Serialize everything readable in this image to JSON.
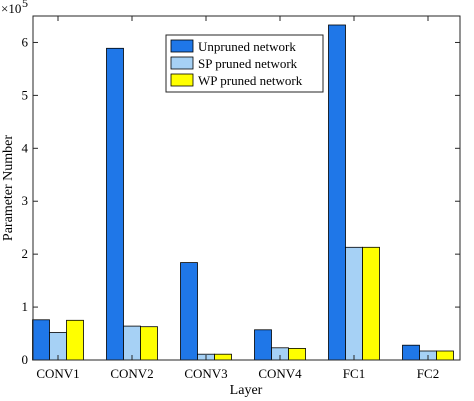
{
  "chart_data": {
    "type": "bar",
    "categories": [
      "CONV1",
      "CONV2",
      "CONV3",
      "CONV4",
      "FC1",
      "FC2"
    ],
    "series": [
      {
        "name": "Unpruned network",
        "color": "#1f77e8",
        "values": [
          76000,
          589000,
          184000,
          57000,
          633000,
          28000
        ]
      },
      {
        "name": "SP pruned network",
        "color": "#a6d1f5",
        "values": [
          52000,
          64000,
          11000,
          23000,
          213000,
          17000
        ]
      },
      {
        "name": "WP pruned network",
        "color": "#ffff00",
        "values": [
          75000,
          63000,
          11000,
          22000,
          213000,
          17000
        ]
      }
    ],
    "xlabel": "Layer",
    "ylabel": "Parameter Number",
    "ylim": [
      0,
      650000
    ],
    "ytick_values": [
      0,
      100000,
      200000,
      300000,
      400000,
      500000,
      600000
    ],
    "ytick_labels": [
      "0",
      "1",
      "2",
      "3",
      "4",
      "5",
      "6"
    ],
    "y_scale_label": "×10",
    "y_scale_exponent": "5",
    "grid": false,
    "legend_position": "top-center"
  }
}
